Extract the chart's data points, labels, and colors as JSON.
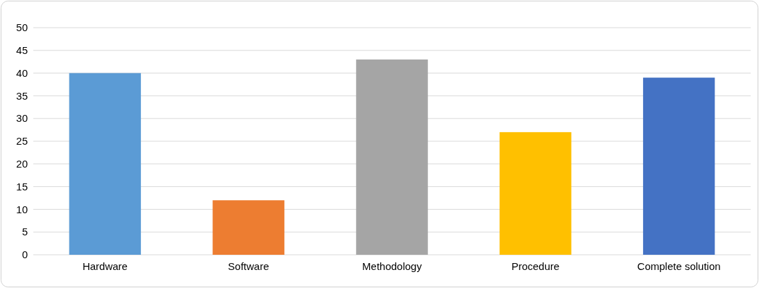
{
  "chart_data": {
    "type": "bar",
    "categories": [
      "Hardware",
      "Software",
      "Methodology",
      "Procedure",
      "Complete solution"
    ],
    "values": [
      40,
      12,
      43,
      27,
      39
    ],
    "colors": [
      "#5b9bd5",
      "#ed7d31",
      "#a5a5a5",
      "#ffc000",
      "#4472c4"
    ],
    "ylim": [
      0,
      50
    ],
    "yticks": [
      0,
      5,
      10,
      15,
      20,
      25,
      30,
      35,
      40,
      45,
      50
    ],
    "grid": "y"
  }
}
